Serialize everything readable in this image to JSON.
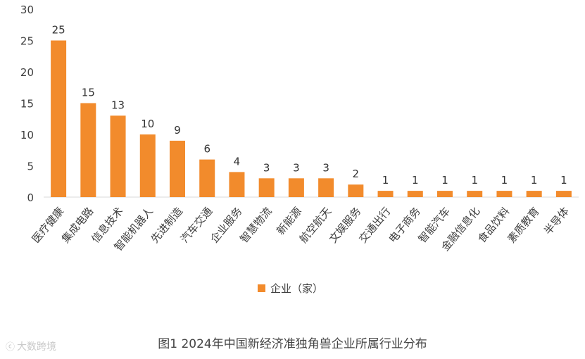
{
  "caption": "图1 2024年中国新经济准独角兽企业所属行业分布",
  "watermark": {
    "text": "大数跨境"
  },
  "chart_data": {
    "type": "bar",
    "title": "",
    "xlabel": "",
    "ylabel": "",
    "ylim": [
      0,
      30
    ],
    "yticks": [
      0,
      5,
      10,
      15,
      20,
      25,
      30
    ],
    "categories": [
      "医疗健康",
      "集成电路",
      "信息技术",
      "智能机器人",
      "先进制造",
      "汽车交通",
      "企业服务",
      "智慧物流",
      "新能源",
      "航空航天",
      "文娱服务",
      "交通出行",
      "电子商务",
      "智能汽车",
      "金融信息化",
      "食品饮料",
      "素质教育",
      "半导体"
    ],
    "series": [
      {
        "name": "企业（家）",
        "color": "#F28B2C",
        "values": [
          25,
          15,
          13,
          10,
          9,
          6,
          4,
          3,
          3,
          3,
          2,
          1,
          1,
          1,
          1,
          1,
          1,
          1
        ]
      }
    ],
    "legend": {
      "position": "bottom",
      "label": "企业（家）"
    },
    "grid": false
  }
}
